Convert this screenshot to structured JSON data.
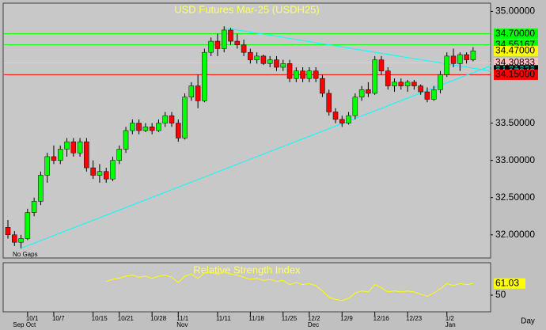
{
  "chart_data": {
    "type": "candlestick",
    "title": "USD Futures Mar-25  (USDH25)",
    "categories": [
      null,
      null,
      null,
      "10/1",
      null,
      null,
      null,
      "10/7",
      null,
      null,
      null,
      null,
      null,
      "10/15",
      null,
      null,
      null,
      "10/21",
      null,
      null,
      null,
      null,
      "10/28",
      null,
      null,
      null,
      "11/1",
      null,
      null,
      null,
      null,
      null,
      "11/11",
      null,
      null,
      null,
      null,
      "11/18",
      null,
      null,
      null,
      null,
      "11/25",
      null,
      null,
      null,
      "12/2",
      null,
      null,
      null,
      null,
      "12/9",
      null,
      null,
      null,
      null,
      "12/16",
      null,
      null,
      null,
      null,
      "12/23",
      null,
      null,
      null,
      null,
      null,
      "1/2",
      null,
      null,
      null,
      null
    ],
    "months": [
      {
        "label": "Sep",
        "index": 1
      },
      {
        "label": "Oct",
        "index": 3
      },
      {
        "label": "Nov",
        "index": 26
      },
      {
        "label": "Dec",
        "index": 46
      },
      {
        "label": "Jan",
        "index": 67
      }
    ],
    "open": [
      32.1,
      32.0,
      31.9,
      31.95,
      32.3,
      32.45,
      32.8,
      33.05,
      33.0,
      33.15,
      33.25,
      33.1,
      33.25,
      32.9,
      32.8,
      32.85,
      32.75,
      33.0,
      33.15,
      33.4,
      33.5,
      33.4,
      33.45,
      33.4,
      33.5,
      33.6,
      33.5,
      33.3,
      33.85,
      34.0,
      33.8,
      34.45,
      34.6,
      34.5,
      34.75,
      34.6,
      34.55,
      34.45,
      34.35,
      34.4,
      34.3,
      34.35,
      34.25,
      34.3,
      34.1,
      34.2,
      34.1,
      34.2,
      34.1,
      33.9,
      33.65,
      33.55,
      33.5,
      33.6,
      33.85,
      33.95,
      33.9,
      34.35,
      34.2,
      34.0,
      34.05,
      34.0,
      34.05,
      34.0,
      33.92,
      33.82,
      33.95,
      34.15,
      34.4,
      34.3,
      34.42,
      34.35
    ],
    "high": [
      32.2,
      32.05,
      32.0,
      32.35,
      32.5,
      32.85,
      33.1,
      33.2,
      33.2,
      33.3,
      33.3,
      33.3,
      33.3,
      33.0,
      32.95,
      32.9,
      33.05,
      33.2,
      33.45,
      33.55,
      33.55,
      33.5,
      33.5,
      33.55,
      33.65,
      33.65,
      33.55,
      33.9,
      34.05,
      34.15,
      34.5,
      34.65,
      34.7,
      34.8,
      34.78,
      34.7,
      34.62,
      34.5,
      34.45,
      34.42,
      34.4,
      34.4,
      34.35,
      34.35,
      34.25,
      34.25,
      34.25,
      34.25,
      34.15,
      33.95,
      33.7,
      33.6,
      33.65,
      33.9,
      34.0,
      34.05,
      34.4,
      34.4,
      34.25,
      34.1,
      34.1,
      34.08,
      34.08,
      34.02,
      33.98,
      34.0,
      34.2,
      34.45,
      34.5,
      34.45,
      34.45,
      34.52
    ],
    "low": [
      31.95,
      31.85,
      31.82,
      31.93,
      32.25,
      32.4,
      32.7,
      32.95,
      32.95,
      33.05,
      33.05,
      33.05,
      32.85,
      32.75,
      32.7,
      32.7,
      32.72,
      32.95,
      33.1,
      33.35,
      33.35,
      33.38,
      33.35,
      33.38,
      33.45,
      33.45,
      33.25,
      33.28,
      33.8,
      33.7,
      33.78,
      34.4,
      34.4,
      34.45,
      34.55,
      34.5,
      34.4,
      34.3,
      34.3,
      34.28,
      34.25,
      34.2,
      34.2,
      34.05,
      34.05,
      34.05,
      34.05,
      34.05,
      33.85,
      33.6,
      33.5,
      33.45,
      33.48,
      33.55,
      33.8,
      33.85,
      33.88,
      34.15,
      33.95,
      33.92,
      33.95,
      33.92,
      33.95,
      33.88,
      33.78,
      33.8,
      33.9,
      34.12,
      34.25,
      34.2,
      34.3,
      34.33
    ],
    "close": [
      32.0,
      31.9,
      31.95,
      32.3,
      32.45,
      32.8,
      33.05,
      33.0,
      33.15,
      33.25,
      33.1,
      33.25,
      32.9,
      32.8,
      32.85,
      32.75,
      33.0,
      33.15,
      33.4,
      33.5,
      33.4,
      33.45,
      33.4,
      33.5,
      33.6,
      33.5,
      33.3,
      33.85,
      34.0,
      33.8,
      34.45,
      34.6,
      34.5,
      34.75,
      34.6,
      34.55,
      34.45,
      34.35,
      34.4,
      34.3,
      34.35,
      34.25,
      34.3,
      34.1,
      34.2,
      34.1,
      34.2,
      34.1,
      33.9,
      33.65,
      33.55,
      33.5,
      33.6,
      33.85,
      33.95,
      33.9,
      34.35,
      34.2,
      34.0,
      34.05,
      34.0,
      34.05,
      34.0,
      33.92,
      33.82,
      33.95,
      34.15,
      34.4,
      34.3,
      34.42,
      34.35,
      34.47
    ],
    "up_color": "#00ff00",
    "down_color": "#ff0000",
    "ylim": [
      31.7,
      35.1
    ],
    "yticks": [
      {
        "value": 35,
        "label": "35.00000"
      },
      {
        "value": 33.5,
        "label": "33.50000"
      },
      {
        "value": 33,
        "label": "33.00000"
      },
      {
        "value": 32.5,
        "label": "32.50000"
      },
      {
        "value": 32,
        "label": "32.00000"
      }
    ],
    "levels": [
      {
        "value": 34.7,
        "label": "34.70000",
        "color": "#00ff00",
        "text_color": "#000000",
        "line": true
      },
      {
        "value": 34.55167,
        "label": "34.55167",
        "color": "#00ff00",
        "text_color": "#000000",
        "line": true
      },
      {
        "value": 34.47,
        "label": "34.47000",
        "color": "#ffff00",
        "text_color": "#000000",
        "line": false
      },
      {
        "value": 34.30833,
        "label": "34.30833",
        "color": "#ffc0c0",
        "text_color": "#000000",
        "line": true
      },
      {
        "value": 34.21,
        "label": "34.21000",
        "color": "#000000",
        "text_color": "#00ffff",
        "line": false
      },
      {
        "value": 34.17843,
        "label": "34.17843",
        "color": "#000000",
        "text_color": "#00ffff",
        "line": false
      },
      {
        "value": 34.15,
        "label": "34.15000",
        "color": "#ff0000",
        "text_color": "#000000",
        "line": true
      }
    ],
    "trendlines": [
      {
        "start": [
          33,
          34.78
        ],
        "end": [
          73.7,
          34.2
        ],
        "color": "#00ffff"
      },
      {
        "start": [
          2,
          31.82
        ],
        "end": [
          73.7,
          34.27
        ],
        "color": "#00ffff"
      }
    ],
    "note": "No Gaps",
    "period": "Day",
    "indicator": {
      "title": "Relative Strength Index",
      "color": "#ffff00",
      "values": [
        null,
        null,
        null,
        null,
        null,
        null,
        null,
        null,
        null,
        null,
        null,
        null,
        null,
        null,
        null,
        63,
        65,
        66,
        68,
        69,
        67,
        68,
        66,
        68,
        69,
        67,
        62,
        68,
        70,
        66,
        71,
        72,
        70,
        72,
        70,
        69,
        67,
        65,
        66,
        64,
        65,
        63,
        64,
        60,
        62,
        60,
        61,
        59,
        54,
        48,
        46,
        45,
        47,
        52,
        54,
        53,
        60,
        57,
        53,
        54,
        53,
        54,
        53,
        51,
        49,
        52,
        56,
        61,
        59,
        61,
        60,
        61.03
      ],
      "ylim": [
        35,
        80
      ],
      "yticks": [
        50
      ]
    }
  }
}
